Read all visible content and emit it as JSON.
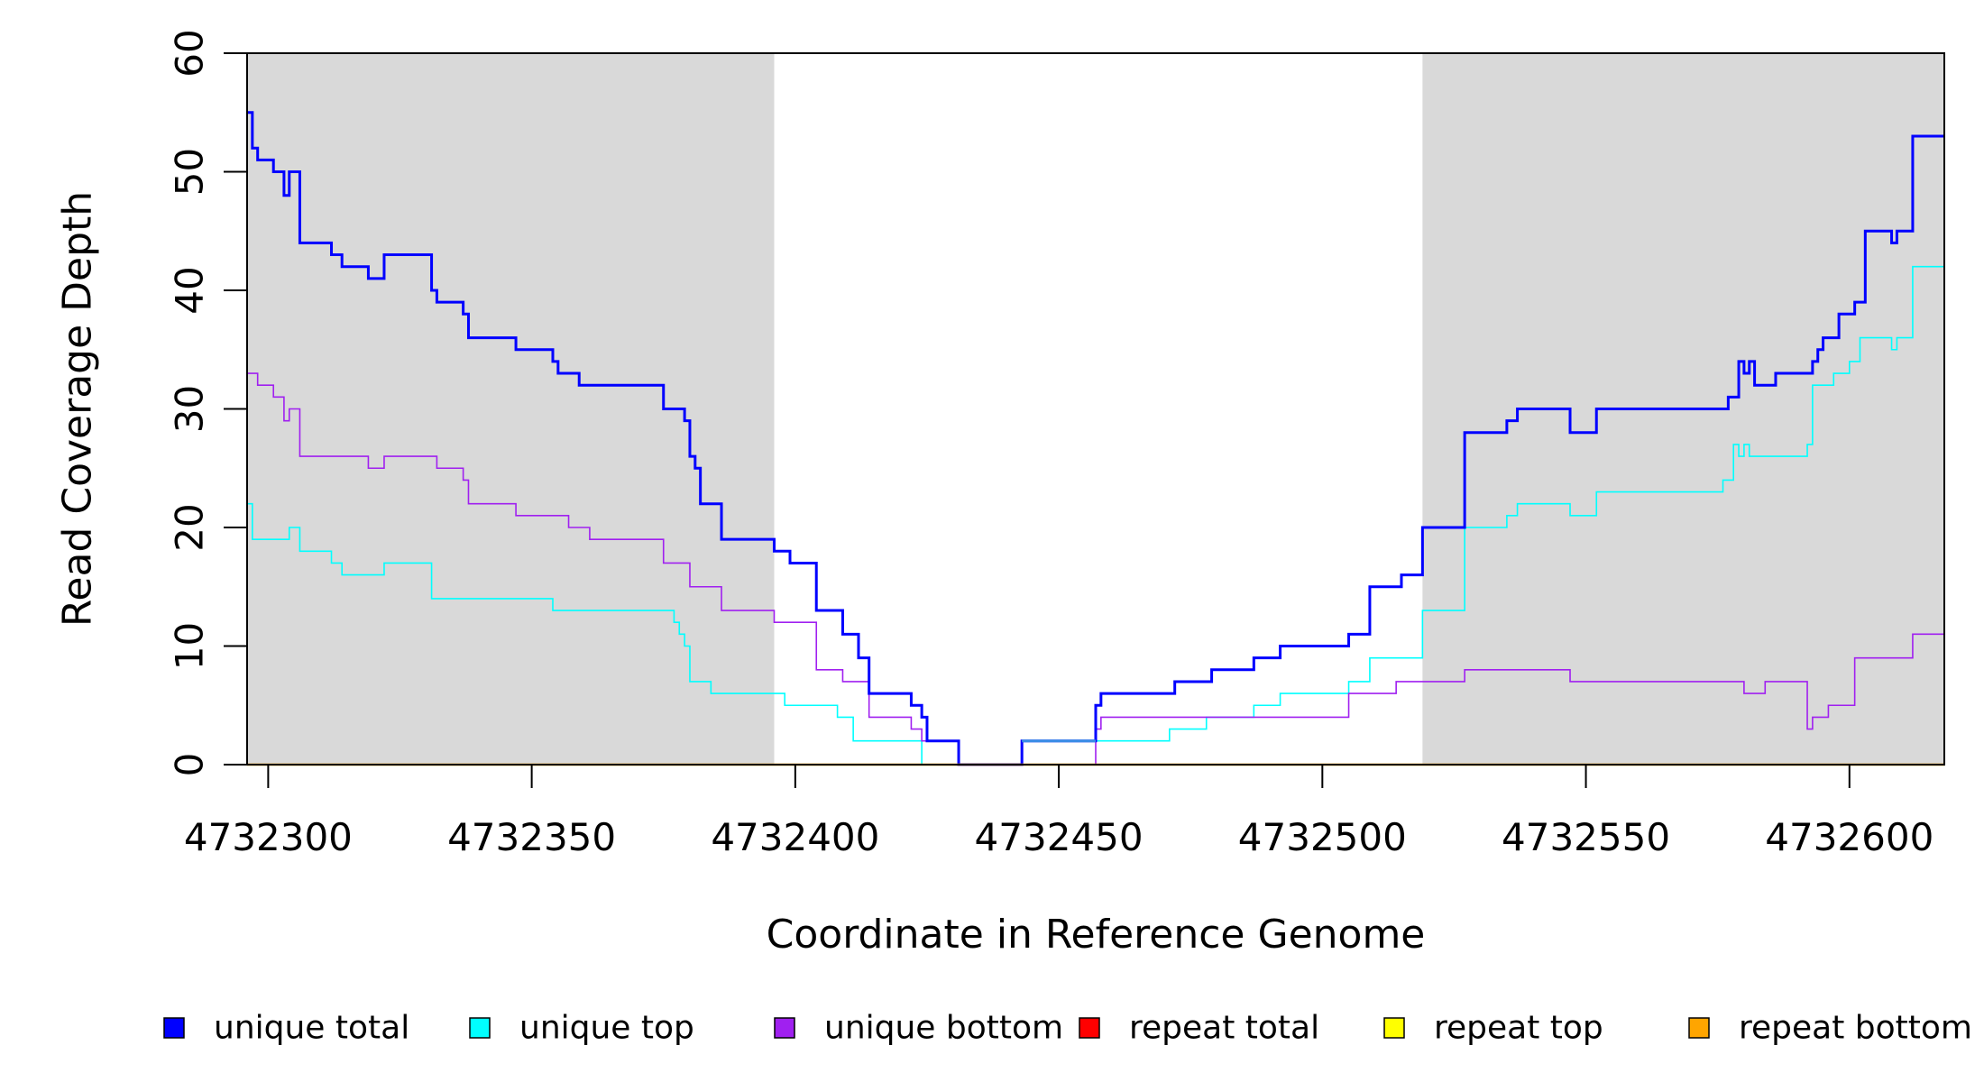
{
  "chart_data": {
    "type": "line",
    "xlabel": "Coordinate in Reference Genome",
    "ylabel": "Read Coverage Depth",
    "xlim": [
      4732296,
      4732618
    ],
    "ylim": [
      0,
      60
    ],
    "x_ticks": [
      4732300,
      4732350,
      4732400,
      4732450,
      4732500,
      4732550,
      4732600
    ],
    "x_tick_labels": [
      "4732300",
      "4732350",
      "4732400",
      "4732450",
      "4732500",
      "4732550",
      "4732600"
    ],
    "y_ticks": [
      0,
      10,
      20,
      30,
      40,
      50,
      60
    ],
    "y_tick_labels": [
      "0",
      "10",
      "20",
      "30",
      "40",
      "50",
      "60"
    ],
    "shaded_regions": [
      {
        "x_start": 4732296,
        "x_end": 4732396,
        "color": "#d9d9d9"
      },
      {
        "x_start": 4732519,
        "x_end": 4732618,
        "color": "#d9d9d9"
      }
    ],
    "grid": false,
    "legend_position": "bottom",
    "series": [
      {
        "name": "unique total",
        "color": "#0000ff",
        "line_width": 3,
        "step": true,
        "points": [
          [
            4732296,
            55
          ],
          [
            4732297,
            52
          ],
          [
            4732298,
            51
          ],
          [
            4732301,
            50
          ],
          [
            4732303,
            48
          ],
          [
            4732304,
            50
          ],
          [
            4732306,
            44
          ],
          [
            4732312,
            43
          ],
          [
            4732314,
            42
          ],
          [
            4732319,
            41
          ],
          [
            4732322,
            43
          ],
          [
            4732331,
            40
          ],
          [
            4732332,
            39
          ],
          [
            4732337,
            38
          ],
          [
            4732338,
            36
          ],
          [
            4732347,
            35
          ],
          [
            4732354,
            34
          ],
          [
            4732355,
            33
          ],
          [
            4732359,
            32
          ],
          [
            4732375,
            30
          ],
          [
            4732379,
            29
          ],
          [
            4732380,
            26
          ],
          [
            4732381,
            25
          ],
          [
            4732382,
            22
          ],
          [
            4732386,
            19
          ],
          [
            4732396,
            18
          ],
          [
            4732399,
            17
          ],
          [
            4732404,
            13
          ],
          [
            4732409,
            11
          ],
          [
            4732412,
            9
          ],
          [
            4732414,
            6
          ],
          [
            4732422,
            5
          ],
          [
            4732424,
            4
          ],
          [
            4732425,
            2
          ],
          [
            4732431,
            0
          ],
          [
            4732443,
            2
          ],
          [
            4732457,
            5
          ],
          [
            4732458,
            6
          ],
          [
            4732472,
            7
          ],
          [
            4732479,
            8
          ],
          [
            4732487,
            9
          ],
          [
            4732492,
            10
          ],
          [
            4732505,
            11
          ],
          [
            4732509,
            15
          ],
          [
            4732515,
            16
          ],
          [
            4732519,
            20
          ],
          [
            4732527,
            28
          ],
          [
            4732535,
            29
          ],
          [
            4732537,
            30
          ],
          [
            4732547,
            28
          ],
          [
            4732552,
            30
          ],
          [
            4732577,
            31
          ],
          [
            4732579,
            34
          ],
          [
            4732580,
            33
          ],
          [
            4732581,
            34
          ],
          [
            4732582,
            32
          ],
          [
            4732586,
            33
          ],
          [
            4732593,
            34
          ],
          [
            4732594,
            35
          ],
          [
            4732595,
            36
          ],
          [
            4732598,
            38
          ],
          [
            4732601,
            39
          ],
          [
            4732603,
            45
          ],
          [
            4732608,
            44
          ],
          [
            4732609,
            45
          ],
          [
            4732612,
            53
          ],
          [
            4732618,
            53
          ]
        ]
      },
      {
        "name": "unique top",
        "color": "#00ffff",
        "line_width": 1.6,
        "step": true,
        "points": [
          [
            4732296,
            22
          ],
          [
            4732297,
            19
          ],
          [
            4732304,
            20
          ],
          [
            4732306,
            18
          ],
          [
            4732312,
            17
          ],
          [
            4732314,
            16
          ],
          [
            4732322,
            17
          ],
          [
            4732331,
            14
          ],
          [
            4732354,
            13
          ],
          [
            4732377,
            12
          ],
          [
            4732378,
            11
          ],
          [
            4732379,
            10
          ],
          [
            4732380,
            7
          ],
          [
            4732384,
            6
          ],
          [
            4732398,
            5
          ],
          [
            4732408,
            4
          ],
          [
            4732411,
            2
          ],
          [
            4732424,
            0
          ],
          [
            4732443,
            2
          ],
          [
            4732471,
            3
          ],
          [
            4732478,
            4
          ],
          [
            4732487,
            5
          ],
          [
            4732492,
            6
          ],
          [
            4732505,
            7
          ],
          [
            4732509,
            9
          ],
          [
            4732519,
            13
          ],
          [
            4732527,
            20
          ],
          [
            4732535,
            21
          ],
          [
            4732537,
            22
          ],
          [
            4732547,
            21
          ],
          [
            4732552,
            23
          ],
          [
            4732576,
            24
          ],
          [
            4732578,
            27
          ],
          [
            4732579,
            26
          ],
          [
            4732580,
            27
          ],
          [
            4732581,
            26
          ],
          [
            4732592,
            27
          ],
          [
            4732593,
            32
          ],
          [
            4732597,
            33
          ],
          [
            4732600,
            34
          ],
          [
            4732602,
            36
          ],
          [
            4732608,
            35
          ],
          [
            4732609,
            36
          ],
          [
            4732612,
            42
          ],
          [
            4732618,
            42
          ]
        ]
      },
      {
        "name": "unique bottom",
        "color": "#a020f0",
        "line_width": 1.6,
        "step": true,
        "points": [
          [
            4732296,
            33
          ],
          [
            4732298,
            32
          ],
          [
            4732301,
            31
          ],
          [
            4732303,
            29
          ],
          [
            4732304,
            30
          ],
          [
            4732306,
            26
          ],
          [
            4732319,
            25
          ],
          [
            4732322,
            26
          ],
          [
            4732332,
            25
          ],
          [
            4732337,
            24
          ],
          [
            4732338,
            22
          ],
          [
            4732347,
            21
          ],
          [
            4732357,
            20
          ],
          [
            4732361,
            19
          ],
          [
            4732375,
            17
          ],
          [
            4732380,
            15
          ],
          [
            4732386,
            13
          ],
          [
            4732396,
            12
          ],
          [
            4732404,
            8
          ],
          [
            4732409,
            7
          ],
          [
            4732414,
            4
          ],
          [
            4732422,
            3
          ],
          [
            4732424,
            2
          ],
          [
            4732431,
            0
          ],
          [
            4732457,
            3
          ],
          [
            4732458,
            4
          ],
          [
            4732505,
            6
          ],
          [
            4732514,
            7
          ],
          [
            4732527,
            8
          ],
          [
            4732547,
            7
          ],
          [
            4732580,
            6
          ],
          [
            4732584,
            7
          ],
          [
            4732592,
            3
          ],
          [
            4732593,
            4
          ],
          [
            4732596,
            5
          ],
          [
            4732601,
            9
          ],
          [
            4732612,
            11
          ],
          [
            4732618,
            11
          ]
        ]
      },
      {
        "name": "repeat total",
        "color": "#ff0000",
        "line_width": 1.6,
        "step": true,
        "points": [
          [
            4732296,
            0
          ],
          [
            4732618,
            0
          ]
        ]
      },
      {
        "name": "repeat top",
        "color": "#ffff00",
        "line_width": 1.6,
        "step": true,
        "points": [
          [
            4732296,
            0
          ],
          [
            4732618,
            0
          ]
        ]
      },
      {
        "name": "repeat bottom",
        "color": "#ffa500",
        "line_width": 2.4,
        "step": true,
        "points": [
          [
            4732296,
            0
          ],
          [
            4732618,
            0
          ]
        ]
      }
    ],
    "overlap_segment": {
      "color": "#3a8ee6",
      "points": [
        [
          4732443,
          2
        ],
        [
          4732457,
          2
        ]
      ]
    },
    "legend": [
      {
        "label": "unique total",
        "color": "#0000ff"
      },
      {
        "label": "unique top",
        "color": "#00ffff"
      },
      {
        "label": "unique bottom",
        "color": "#a020f0"
      },
      {
        "label": "repeat total",
        "color": "#ff0000"
      },
      {
        "label": "repeat top",
        "color": "#ffff00"
      },
      {
        "label": "repeat bottom",
        "color": "#ffa500"
      }
    ]
  }
}
